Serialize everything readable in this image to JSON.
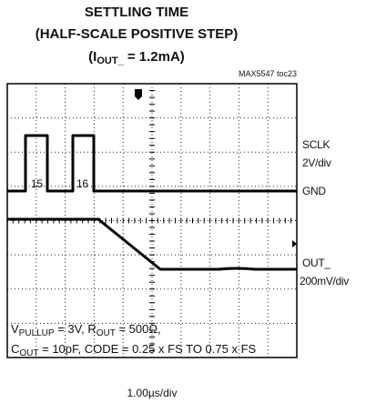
{
  "title": {
    "line1": "SETTLING TIME",
    "line2": "(HALF-SCALE POSITIVE STEP)",
    "line3": [
      "(I",
      "OUT_",
      " = 1.2mA)"
    ]
  },
  "figure_id": "MAX5547 toc23",
  "channels": [
    {
      "name": "SCLK",
      "scale": "2V/div",
      "reference": "GND"
    },
    {
      "name": "OUT_",
      "scale": "200mV/div"
    }
  ],
  "pulse_labels": [
    "15",
    "16"
  ],
  "conditions": [
    [
      "V",
      "PULLUP",
      " = 3V, R",
      "OUT",
      " = 500Ω,"
    ],
    [
      "C",
      "OUT",
      " = 10pF, CODE = 0.25 x FS TO 0.75 x FS"
    ]
  ],
  "time_scale": "1.00µs/div"
}
